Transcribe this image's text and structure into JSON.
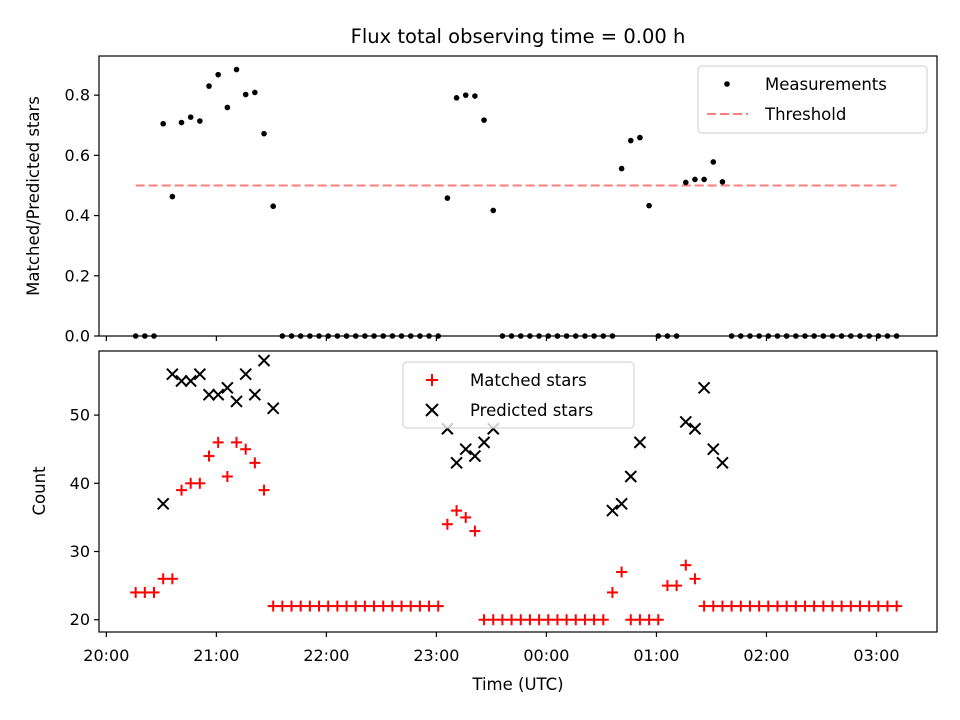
{
  "title": "Flux total observing time = 0.00 h",
  "colors": {
    "measurement": "#000000",
    "threshold": "#ff7f7f",
    "matched": "#ff0000",
    "predicted": "#000000",
    "legend_border": "#cccccc"
  },
  "chart_data": [
    {
      "type": "scatter",
      "ylabel": "Matched/Predicted stars",
      "xlim": [
        "19:56",
        "03:33"
      ],
      "ylim": [
        0,
        0.93
      ],
      "yticks": [
        0.0,
        0.2,
        0.4,
        0.6,
        0.8
      ],
      "ytick_labels": [
        "0.0",
        "0.2",
        "0.4",
        "0.6",
        "0.8"
      ],
      "legend_position": "top-right",
      "series": [
        {
          "name": "Measurements",
          "marker": "dot",
          "x": [
            "20:16",
            "20:21",
            "20:26",
            "20:31",
            "20:36",
            "20:41",
            "20:46",
            "20:51",
            "20:56",
            "21:01",
            "21:06",
            "21:11",
            "21:16",
            "21:21",
            "21:26",
            "21:31",
            "21:36",
            "21:41",
            "21:46",
            "21:51",
            "21:56",
            "22:01",
            "22:06",
            "22:11",
            "22:16",
            "22:21",
            "22:26",
            "22:31",
            "22:36",
            "22:41",
            "22:46",
            "22:51",
            "22:56",
            "23:01",
            "23:06",
            "23:11",
            "23:16",
            "23:21",
            "23:26",
            "23:31",
            "23:36",
            "23:41",
            "23:46",
            "23:51",
            "23:56",
            "00:01",
            "00:06",
            "00:11",
            "00:16",
            "00:21",
            "00:26",
            "00:31",
            "00:36",
            "00:41",
            "00:46",
            "00:51",
            "00:56",
            "01:01",
            "01:06",
            "01:11",
            "01:16",
            "01:21",
            "01:26",
            "01:31",
            "01:36",
            "01:41",
            "01:46",
            "01:51",
            "01:56",
            "02:01",
            "02:06",
            "02:11",
            "02:16",
            "02:21",
            "02:26",
            "02:31",
            "02:36",
            "02:41",
            "02:46",
            "02:51",
            "02:56",
            "03:01",
            "03:06",
            "03:11"
          ],
          "y": [
            0,
            0,
            0,
            0.705,
            0.463,
            0.709,
            0.727,
            0.714,
            0.83,
            0.868,
            0.759,
            0.885,
            0.802,
            0.809,
            0.672,
            0.431,
            0,
            0,
            0,
            0,
            0,
            0,
            0,
            0,
            0,
            0,
            0,
            0,
            0,
            0,
            0,
            0,
            0,
            0,
            0.458,
            0.791,
            0.8,
            0.797,
            0.717,
            0.417,
            0,
            0,
            0,
            0,
            0,
            0,
            0,
            0,
            0,
            0,
            0,
            0,
            0,
            0.556,
            0.649,
            0.659,
            0.433,
            0,
            0,
            0,
            0.51,
            0.52,
            0.52,
            0.578,
            0.512,
            0,
            0,
            0,
            0,
            0,
            0,
            0,
            0,
            0,
            0,
            0,
            0,
            0,
            0,
            0,
            0,
            0,
            0,
            0
          ]
        },
        {
          "name": "Threshold",
          "marker": "dashed-line",
          "x": [
            "20:16",
            "03:11"
          ],
          "y": [
            0.5,
            0.5
          ]
        }
      ]
    },
    {
      "type": "scatter",
      "xlabel": "Time (UTC)",
      "ylabel": "Count",
      "xlim": [
        "19:56",
        "03:33"
      ],
      "ylim": [
        18.2,
        59.4
      ],
      "yticks": [
        20,
        30,
        40,
        50
      ],
      "ytick_labels": [
        "20",
        "30",
        "40",
        "50"
      ],
      "xticks": [
        "20:00",
        "21:00",
        "22:00",
        "23:00",
        "00:00",
        "01:00",
        "02:00",
        "03:00"
      ],
      "legend_position": "top-center",
      "series": [
        {
          "name": "Matched stars",
          "marker": "plus",
          "x": [
            "20:16",
            "20:21",
            "20:26",
            "20:31",
            "20:36",
            "20:41",
            "20:46",
            "20:51",
            "20:56",
            "21:01",
            "21:06",
            "21:11",
            "21:16",
            "21:21",
            "21:26",
            "21:31",
            "21:36",
            "21:41",
            "21:46",
            "21:51",
            "21:56",
            "22:01",
            "22:06",
            "22:11",
            "22:16",
            "22:21",
            "22:26",
            "22:31",
            "22:36",
            "22:41",
            "22:46",
            "22:51",
            "22:56",
            "23:01",
            "23:06",
            "23:11",
            "23:16",
            "23:21",
            "23:26",
            "23:31",
            "23:36",
            "23:41",
            "23:46",
            "23:51",
            "23:56",
            "00:01",
            "00:06",
            "00:11",
            "00:16",
            "00:21",
            "00:26",
            "00:31",
            "00:36",
            "00:41",
            "00:46",
            "00:51",
            "00:56",
            "01:01",
            "01:06",
            "01:11",
            "01:16",
            "01:21",
            "01:26",
            "01:31",
            "01:36",
            "01:41",
            "01:46",
            "01:51",
            "01:56",
            "02:01",
            "02:06",
            "02:11",
            "02:16",
            "02:21",
            "02:26",
            "02:31",
            "02:36",
            "02:41",
            "02:46",
            "02:51",
            "02:56",
            "03:01",
            "03:06",
            "03:11"
          ],
          "y": [
            24,
            24,
            24,
            26,
            26,
            39,
            40,
            40,
            44,
            46,
            41,
            46,
            45,
            43,
            39,
            22,
            22,
            22,
            22,
            22,
            22,
            22,
            22,
            22,
            22,
            22,
            22,
            22,
            22,
            22,
            22,
            22,
            22,
            22,
            34,
            36,
            35,
            33,
            20,
            20,
            20,
            20,
            20,
            20,
            20,
            20,
            20,
            20,
            20,
            20,
            20,
            20,
            24,
            27,
            20,
            20,
            20,
            20,
            25,
            25,
            28,
            26,
            22,
            22,
            22,
            22,
            22,
            22,
            22,
            22,
            22,
            22,
            22,
            22,
            22,
            22,
            22,
            22,
            22,
            22,
            22,
            22,
            22,
            22
          ]
        },
        {
          "name": "Predicted stars",
          "marker": "x",
          "x": [
            "20:31",
            "20:36",
            "20:41",
            "20:46",
            "20:51",
            "20:56",
            "21:01",
            "21:06",
            "21:11",
            "21:16",
            "21:21",
            "21:26",
            "21:31",
            "23:06",
            "23:11",
            "23:16",
            "23:21",
            "23:26",
            "23:31",
            "00:36",
            "00:41",
            "00:46",
            "00:51",
            "01:16",
            "01:21",
            "01:26",
            "01:31",
            "01:36"
          ],
          "y": [
            37,
            56,
            55,
            55,
            56,
            53,
            53,
            54,
            52,
            56,
            53,
            58,
            51,
            48,
            43,
            45,
            44,
            46,
            48,
            36,
            37,
            41,
            46,
            49,
            48,
            54,
            45,
            43
          ]
        }
      ]
    }
  ]
}
